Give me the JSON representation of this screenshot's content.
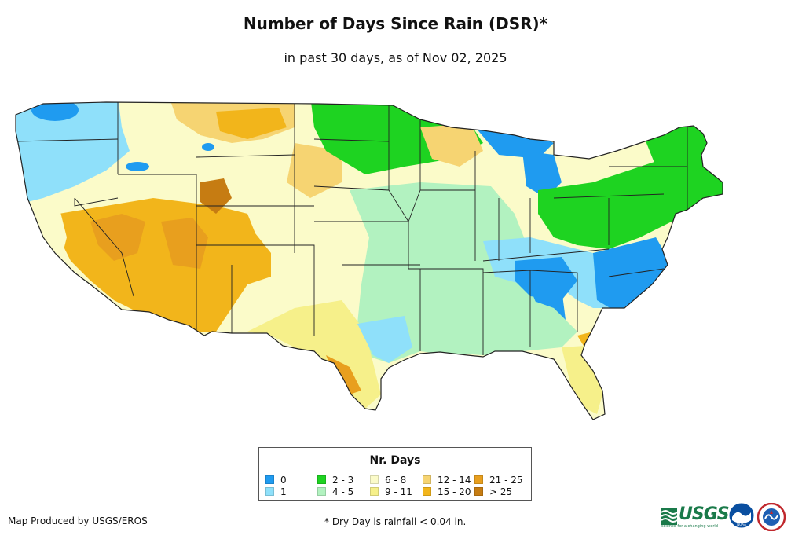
{
  "title": "Number of Days Since Rain (DSR)*",
  "subtitle": "in past 30 days, as of Nov 02, 2025",
  "legend": {
    "title": "Nr. Days",
    "items": [
      {
        "label": "0",
        "color": "#1f9bf0"
      },
      {
        "label": "1",
        "color": "#8fe0fa"
      },
      {
        "label": "2 - 3",
        "color": "#1ed321"
      },
      {
        "label": "4 - 5",
        "color": "#b2f2c0"
      },
      {
        "label": "6 - 8",
        "color": "#fbfbc9"
      },
      {
        "label": "9 - 11",
        "color": "#f6f08a"
      },
      {
        "label": "12 - 14",
        "color": "#f6d472"
      },
      {
        "label": "15 - 20",
        "color": "#f2b51b"
      },
      {
        "label": "21 - 25",
        "color": "#e89f1e"
      },
      {
        "label": "> 25",
        "color": "#c67c12"
      }
    ]
  },
  "footer": {
    "producer": "Map Produced by USGS/EROS",
    "note": "* Dry Day is rainfall < 0.04 in."
  },
  "logos": {
    "usgs_text": "USGS",
    "usgs_tagline": "science for a changing world",
    "noaa_text": "NOAA",
    "nws_icon": "nws-logo-icon"
  }
}
